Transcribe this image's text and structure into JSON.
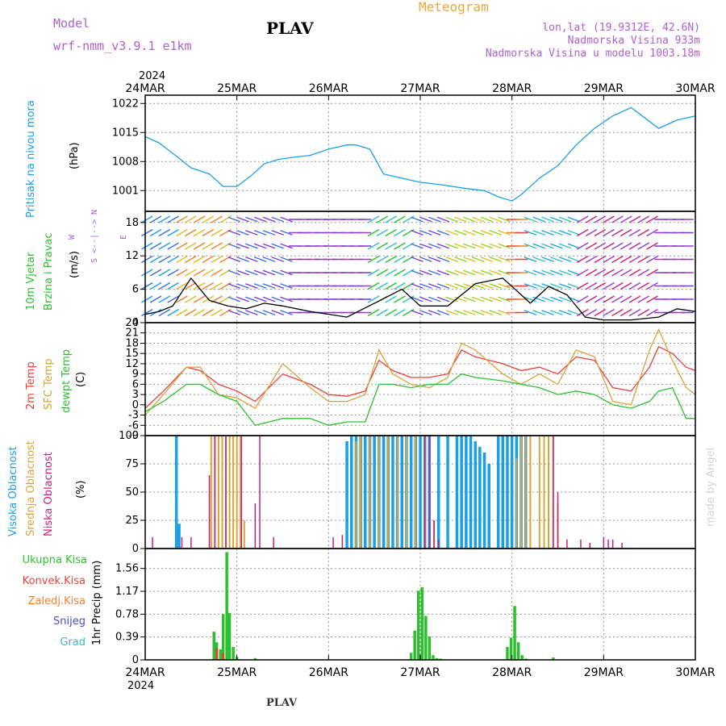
{
  "header": {
    "model_label": "Model",
    "model_name": "wrf-nmm_v3.9.1  e1km",
    "station_title": "PLAV",
    "meteogram_title": "Meteogram",
    "lonlat": "lon,lat (19.9312E, 42.6N)",
    "elevation": "Nadmorska Visina 933m",
    "model_elevation": "Nadmorska Visina u modelu 1003.18m",
    "watermark": "made by Angel",
    "footer_station": "PLAV"
  },
  "colors": {
    "pressure": "#1aa0e8",
    "temp2m": "#e8403a",
    "sfc": "#d9a43a",
    "dewpt": "#2cc02c",
    "high_cloud": "#1aa0e8",
    "mid_cloud": "#d9a43a",
    "low_cloud": "#c8207a",
    "total_precip": "#2cc02c",
    "conv_precip": "#e8403a",
    "freezing": "#f07f30",
    "snow": "#4a4ae0",
    "hail": "#30c0c0",
    "header_purple": "#b060d0",
    "header_orange": "#e8a840"
  },
  "x_axis": {
    "ticks": [
      "24MAR",
      "25MAR",
      "26MAR",
      "27MAR",
      "28MAR",
      "29MAR",
      "30MAR"
    ],
    "year_top": "2024",
    "year_bottom": "2024",
    "range_days": [
      0,
      6
    ]
  },
  "panels": {
    "pressure": {
      "label1": "Pritisak na nivou mora",
      "unit": "(hPa)"
    },
    "wind": {
      "label1": "10m Vjetar",
      "label2": "Brzina i Pravac",
      "unit": "(m/s)",
      "compass_n": "N",
      "compass_e": "E",
      "compass_w": "W",
      "compass_s": "S"
    },
    "temp": {
      "label1": "2m Temp",
      "label2": "SFC Temp",
      "label3": "dewpt Temp",
      "unit": "(C)"
    },
    "cloud": {
      "label1": "Visoka Oblacnost",
      "label2": "Srednja Oblacnost",
      "label3": "Niska Oblacnost",
      "unit": "(%)"
    },
    "precip": {
      "legend": [
        "Ukupna Kisa",
        "Konvek.Kisa",
        "Zaledj.Kisa",
        "Snijeg",
        "Grad"
      ],
      "unit": "1hr Precip (mm)"
    }
  },
  "chart_data": [
    {
      "type": "line",
      "title": "Pritisak na nivou mora",
      "ylabel": "(hPa)",
      "ylim": [
        996,
        1024
      ],
      "yticks": [
        "1001",
        "1008",
        "1015",
        "1022"
      ],
      "grid": true,
      "series": [
        {
          "name": "Pritisak na nivou mora",
          "x": [
            0,
            0.15,
            0.3,
            0.5,
            0.7,
            0.85,
            1.0,
            1.15,
            1.3,
            1.45,
            1.6,
            1.8,
            2.0,
            2.2,
            2.3,
            2.45,
            2.6,
            2.8,
            3.0,
            3.2,
            3.5,
            3.7,
            3.85,
            4.0,
            4.1,
            4.3,
            4.5,
            4.7,
            4.9,
            5.1,
            5.3,
            5.45,
            5.6,
            5.8,
            6.0
          ],
          "values": [
            1014,
            1012.5,
            1010,
            1006.5,
            1005,
            1002,
            1002,
            1004.5,
            1007.5,
            1008.5,
            1009,
            1009.5,
            1011,
            1012,
            1012,
            1011,
            1005,
            1004,
            1003,
            1002.5,
            1001.5,
            1001,
            999.5,
            998.5,
            1000,
            1004,
            1007,
            1012,
            1016,
            1019,
            1021,
            1018.5,
            1016,
            1018,
            1019
          ]
        }
      ]
    },
    {
      "type": "line",
      "title": "10m Vjetar Brzina i Pravac",
      "ylabel": "(m/s)",
      "ylim": [
        0,
        20
      ],
      "yticks": [
        "0",
        "6",
        "12",
        "18"
      ],
      "grid": true,
      "series": [
        {
          "name": "Brzina",
          "x": [
            0,
            0.15,
            0.3,
            0.5,
            0.7,
            0.9,
            1.1,
            1.3,
            1.5,
            1.8,
            2.0,
            2.2,
            2.5,
            2.8,
            3.0,
            3.3,
            3.6,
            3.9,
            4.0,
            4.2,
            4.4,
            4.6,
            4.8,
            5.0,
            5.3,
            5.6,
            5.8,
            6.0
          ],
          "values": [
            1.5,
            2,
            3,
            8,
            4,
            3,
            2.5,
            3.5,
            3,
            2,
            1.5,
            1,
            3.5,
            6,
            3,
            3,
            7,
            8,
            6.5,
            3.5,
            6.5,
            5,
            1,
            0.5,
            0.5,
            1,
            2.5,
            2
          ]
        }
      ]
    },
    {
      "type": "line",
      "title": "2m Temp / SFC Temp / dewpt Temp",
      "ylabel": "(C)",
      "ylim": [
        -9,
        24
      ],
      "yticks": [
        "-9",
        "-6",
        "-3",
        "0",
        "3",
        "6",
        "9",
        "12",
        "15",
        "18",
        "21",
        "24"
      ],
      "grid": true,
      "series": [
        {
          "name": "2m Temp",
          "x": [
            0,
            0.2,
            0.45,
            0.6,
            0.8,
            1.0,
            1.2,
            1.5,
            1.8,
            2.0,
            2.2,
            2.4,
            2.55,
            2.7,
            2.9,
            3.1,
            3.3,
            3.45,
            3.6,
            3.9,
            4.1,
            4.3,
            4.5,
            4.7,
            4.9,
            5.1,
            5.3,
            5.5,
            5.6,
            5.75,
            5.9,
            6.0
          ],
          "values": [
            -1,
            4,
            11,
            10,
            6,
            4,
            1,
            9,
            6,
            3,
            2.5,
            4,
            13,
            10,
            8,
            8,
            9,
            16,
            14,
            12,
            10,
            11,
            9,
            14,
            13,
            5,
            4,
            11,
            17,
            15,
            11,
            10
          ]
        },
        {
          "name": "SFC Temp",
          "x": [
            0,
            0.2,
            0.45,
            0.6,
            0.8,
            1.0,
            1.2,
            1.5,
            1.8,
            2.0,
            2.2,
            2.4,
            2.55,
            2.7,
            2.9,
            3.1,
            3.3,
            3.45,
            3.6,
            3.9,
            4.1,
            4.3,
            4.5,
            4.7,
            4.9,
            5.1,
            5.3,
            5.5,
            5.6,
            5.75,
            5.9,
            6.0
          ],
          "values": [
            -3,
            3,
            11,
            11,
            3,
            2,
            -1,
            12,
            5,
            1,
            1,
            3,
            16,
            9,
            6,
            5,
            8,
            18,
            16,
            9,
            6,
            9,
            6,
            16,
            14,
            1,
            0,
            16,
            22,
            13,
            5,
            3
          ]
        },
        {
          "name": "dewpt Temp",
          "x": [
            0,
            0.2,
            0.45,
            0.6,
            0.8,
            1.0,
            1.2,
            1.5,
            1.8,
            2.0,
            2.2,
            2.4,
            2.55,
            2.7,
            2.9,
            3.1,
            3.3,
            3.45,
            3.6,
            3.9,
            4.1,
            4.3,
            4.5,
            4.7,
            4.9,
            5.1,
            5.3,
            5.5,
            5.6,
            5.75,
            5.9,
            6.0
          ],
          "values": [
            -2,
            1,
            6,
            6,
            3,
            1,
            -6,
            -4,
            -4,
            -6,
            -5,
            -5,
            6,
            6,
            5,
            6,
            6,
            9,
            8,
            7,
            6,
            5,
            3,
            4,
            3,
            0,
            -1,
            1,
            4,
            5,
            -4,
            -4
          ]
        }
      ]
    },
    {
      "type": "bar",
      "title": "Visoka / Srednja / Niska Oblacnost",
      "ylabel": "(%)",
      "ylim": [
        0,
        100
      ],
      "yticks": [
        "0",
        "25",
        "50",
        "75",
        "100"
      ],
      "grid": true,
      "series": [
        {
          "name": "Visoka Oblacnost",
          "x": [
            0.34,
            0.37,
            2.2,
            2.25,
            2.3,
            2.35,
            2.4,
            2.45,
            2.5,
            2.55,
            2.6,
            2.65,
            2.7,
            2.75,
            2.8,
            2.85,
            2.9,
            2.95,
            3.0,
            3.05,
            3.1,
            3.2,
            3.3,
            3.4,
            3.45,
            3.5,
            3.55,
            3.6,
            3.65,
            3.7,
            3.75,
            3.85,
            3.9,
            3.95,
            4.0,
            4.05,
            4.1,
            4.15
          ],
          "values": [
            100,
            22,
            95,
            100,
            100,
            100,
            100,
            100,
            100,
            100,
            100,
            100,
            100,
            100,
            100,
            100,
            100,
            100,
            100,
            100,
            100,
            100,
            100,
            100,
            100,
            100,
            100,
            95,
            90,
            85,
            75,
            100,
            100,
            100,
            100,
            100,
            100,
            100
          ]
        },
        {
          "name": "Srednja Oblacnost",
          "x": [
            0.72,
            0.76,
            0.8,
            0.84,
            0.88,
            0.92,
            0.96,
            1.0,
            1.04,
            1.08,
            2.3,
            2.35,
            2.45,
            2.55,
            2.65,
            2.75,
            2.85,
            2.95,
            3.05,
            3.15,
            4.05,
            4.1,
            4.15,
            4.2,
            4.3,
            4.35,
            4.4,
            4.45,
            4.5
          ],
          "values": [
            100,
            100,
            100,
            100,
            100,
            100,
            100,
            100,
            100,
            25,
            95,
            100,
            100,
            100,
            100,
            100,
            100,
            100,
            100,
            25,
            80,
            100,
            100,
            100,
            100,
            100,
            100,
            100,
            40
          ]
        },
        {
          "name": "Niska Oblacnost",
          "x": [
            0.08,
            0.4,
            0.5,
            0.7,
            0.76,
            0.88,
            1.05,
            1.2,
            1.25,
            1.4,
            2.05,
            2.15,
            3.05,
            3.1,
            3.15,
            3.2,
            4.45,
            4.5,
            4.6,
            4.75,
            4.85,
            5.0,
            5.05,
            5.1,
            5.2
          ],
          "values": [
            10,
            10,
            10,
            65,
            100,
            100,
            100,
            40,
            100,
            10,
            10,
            12,
            100,
            100,
            25,
            8,
            100,
            50,
            8,
            8,
            5,
            10,
            8,
            8,
            5
          ]
        }
      ]
    },
    {
      "type": "bar",
      "title": "1hr Precip",
      "ylabel": "1hr Precip (mm)",
      "ylim": [
        0,
        1.9
      ],
      "yticks": [
        "0",
        "0.39",
        "0.78",
        "1.17",
        "1.56"
      ],
      "grid": true,
      "series": [
        {
          "name": "Ukupna Kisa",
          "x": [
            0.75,
            0.78,
            0.82,
            0.85,
            0.89,
            0.92,
            0.96,
            1.0,
            1.2,
            2.9,
            2.94,
            2.98,
            3.02,
            3.06,
            3.1,
            3.14,
            3.18,
            3.22,
            3.95,
            3.99,
            4.03,
            4.07,
            4.11,
            4.15,
            4.45
          ],
          "values": [
            0.48,
            0.3,
            0.18,
            0.78,
            1.84,
            0.8,
            0.22,
            0.05,
            0.03,
            0.12,
            0.5,
            1.18,
            1.24,
            0.75,
            0.4,
            0.08,
            0.03,
            0.02,
            0.22,
            0.38,
            0.92,
            0.3,
            0.08,
            0.02,
            0.04
          ]
        },
        {
          "name": "Konvek.Kisa",
          "x": [
            0.78,
            0.85
          ],
          "values": [
            0.2,
            0.12
          ]
        }
      ]
    }
  ]
}
